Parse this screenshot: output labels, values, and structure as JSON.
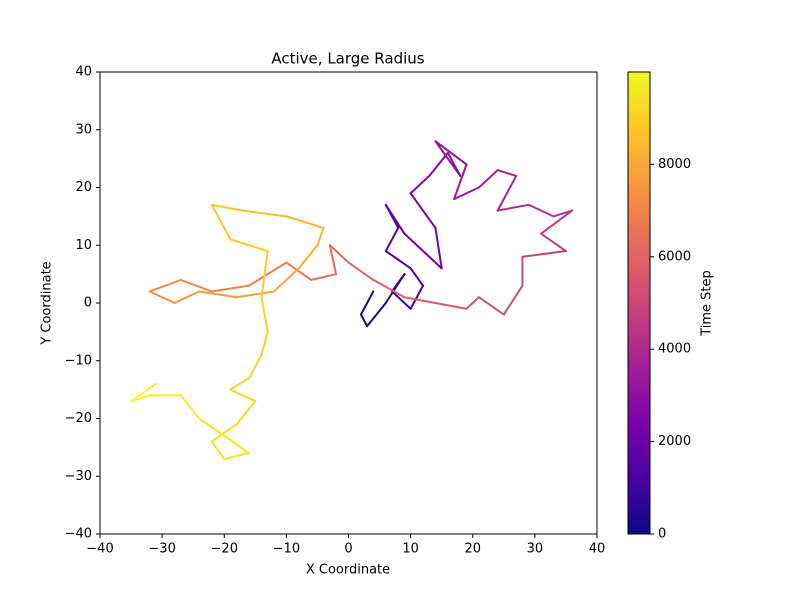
{
  "chart_data": {
    "type": "line",
    "title": "Active, Large Radius",
    "xlabel": "X Coordinate",
    "ylabel": "Y Coordinate",
    "colorbar_label": "Time Step",
    "colormap": "plasma",
    "x": [
      4,
      2,
      3,
      6,
      9,
      7,
      10,
      12,
      10,
      6,
      8,
      6,
      9,
      13,
      15,
      14,
      10,
      13,
      16,
      18,
      14,
      19,
      17,
      21,
      24,
      27,
      24,
      29,
      33,
      36,
      31,
      35,
      28,
      28,
      25,
      21,
      19,
      14,
      9,
      4,
      0,
      -3,
      -2,
      -6,
      -10,
      -16,
      -22,
      -27,
      -32,
      -28,
      -24,
      -18,
      -12,
      -8,
      -5,
      -4,
      -10,
      -17,
      -22,
      -19,
      -13,
      -14,
      -13,
      -14,
      -16,
      -19,
      -15,
      -18,
      -22,
      -20,
      -16,
      -24,
      -27,
      -32,
      -35,
      -31
    ],
    "values": [
      2,
      -2,
      -4,
      0,
      5,
      2,
      -1,
      3,
      6,
      9,
      13,
      17,
      12,
      8,
      6,
      13,
      19,
      22,
      26,
      22,
      28,
      24,
      18,
      20,
      23,
      22,
      16,
      17,
      15,
      16,
      12,
      9,
      8,
      3,
      -2,
      1,
      -1,
      0,
      1,
      4,
      7,
      10,
      5,
      4,
      7,
      3,
      2,
      4,
      2,
      0,
      2,
      1,
      2,
      6,
      10,
      13,
      15,
      16,
      17,
      11,
      9,
      1,
      -5,
      -9,
      -13,
      -15,
      -17,
      -21,
      -24,
      -27,
      -26,
      -20,
      -16,
      -16,
      -17,
      -14
    ],
    "time_steps": [
      0,
      150,
      300,
      450,
      600,
      750,
      900,
      1050,
      1200,
      1350,
      1500,
      1650,
      1800,
      1950,
      2100,
      2250,
      2400,
      2550,
      2700,
      2850,
      3000,
      3150,
      3300,
      3450,
      3600,
      3750,
      3900,
      4050,
      4200,
      4350,
      4500,
      4650,
      4800,
      4950,
      5100,
      5250,
      5400,
      5550,
      5700,
      5850,
      6000,
      6150,
      6300,
      6450,
      6600,
      6750,
      6900,
      7050,
      7200,
      7350,
      7500,
      7650,
      7800,
      7950,
      8100,
      8250,
      8400,
      8550,
      8700,
      8800,
      8900,
      8950,
      9000,
      9050,
      9100,
      9150,
      9200,
      9300,
      9400,
      9500,
      9550,
      9600,
      9700,
      9800,
      9900,
      9999
    ],
    "xlim": [
      -40,
      40
    ],
    "ylim": [
      -40,
      40
    ],
    "clim": [
      0,
      9999
    ],
    "xticks": [
      {
        "value": -40,
        "label": "−40"
      },
      {
        "value": -30,
        "label": "−30"
      },
      {
        "value": -20,
        "label": "−20"
      },
      {
        "value": -10,
        "label": "−10"
      },
      0,
      10,
      20,
      30,
      40
    ],
    "yticks": [
      {
        "value": -40,
        "label": "−40"
      },
      {
        "value": -30,
        "label": "−30"
      },
      {
        "value": -20,
        "label": "−20"
      },
      {
        "value": -10,
        "label": "−10"
      },
      0,
      10,
      20,
      30,
      40
    ],
    "cticks": [
      0,
      2000,
      4000,
      6000,
      8000
    ]
  }
}
